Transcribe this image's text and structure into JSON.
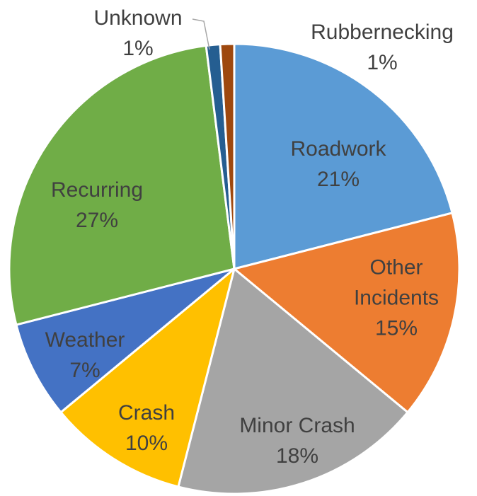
{
  "chart_data": {
    "type": "pie",
    "categories": [
      "Roadwork",
      "Other Incidents",
      "Minor Crash",
      "Crash",
      "Weather",
      "Recurring",
      "Unknown",
      "Rubbernecking"
    ],
    "values": [
      21,
      15,
      18,
      10,
      7,
      27,
      1,
      1
    ],
    "value_labels": [
      "21%",
      "15%",
      "18%",
      "10%",
      "7%",
      "27%",
      "1%",
      "1%"
    ],
    "colors": [
      "#5b9bd5",
      "#ed7d31",
      "#a5a5a5",
      "#ffc000",
      "#4472c4",
      "#70ad47",
      "#255e91",
      "#9e480e"
    ]
  }
}
